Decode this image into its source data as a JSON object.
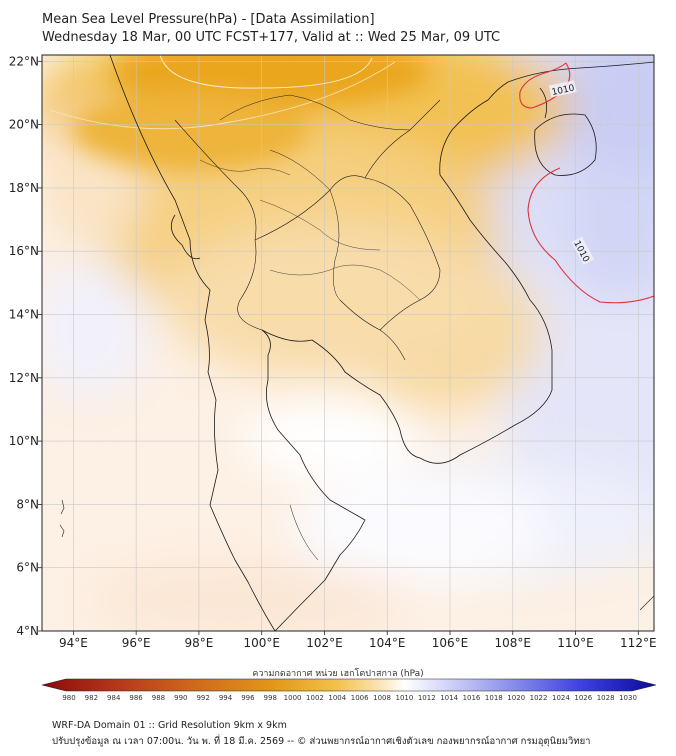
{
  "title": {
    "line1": "Mean Sea Level Pressure(hPa) - [Data Assimilation]",
    "line2": "Wednesday 18 Mar, 00 UTC FCST+177, Valid at :: Wed 25 Mar, 09 UTC"
  },
  "map": {
    "lon_range": [
      93,
      112.5
    ],
    "lat_range": [
      4,
      22.2
    ],
    "lon_ticks": [
      {
        "value": 94,
        "label": "94°E"
      },
      {
        "value": 96,
        "label": "96°E"
      },
      {
        "value": 98,
        "label": "98°E"
      },
      {
        "value": 100,
        "label": "100°E"
      },
      {
        "value": 102,
        "label": "102°E"
      },
      {
        "value": 104,
        "label": "104°E"
      },
      {
        "value": 106,
        "label": "106°E"
      },
      {
        "value": 108,
        "label": "108°E"
      },
      {
        "value": 110,
        "label": "110°E"
      },
      {
        "value": 112,
        "label": "112°E"
      }
    ],
    "lat_ticks": [
      {
        "value": 22,
        "label": "22°N"
      },
      {
        "value": 20,
        "label": "20°N"
      },
      {
        "value": 18,
        "label": "18°N"
      },
      {
        "value": 16,
        "label": "16°N"
      },
      {
        "value": 14,
        "label": "14°N"
      },
      {
        "value": 12,
        "label": "12°N"
      },
      {
        "value": 10,
        "label": "10°N"
      },
      {
        "value": 8,
        "label": "8°N"
      },
      {
        "value": 6,
        "label": "6°N"
      },
      {
        "value": 4,
        "label": "4°N"
      }
    ],
    "contour_labels": [
      {
        "text": "1010",
        "lon": 109.6,
        "lat": 21.1,
        "rotate": -12
      },
      {
        "text": "1010",
        "lon": 110.2,
        "lat": 16.0,
        "rotate": 62
      }
    ],
    "colors": {
      "high": "#e8a817",
      "mid": "#f2c96a",
      "light": "#f9e2b8",
      "neutral": "#fdf1e6",
      "white": "#ffffff",
      "low": "#e7e8fb",
      "lower": "#c8cbf4",
      "lowest": "#a9aeee",
      "contour": "#e0303a",
      "coast": "#1a1a1a",
      "grid": "#c8c8c8"
    }
  },
  "colorbar": {
    "title": "ความกดอากาศ หน่วย เฮกโตปาสกาล (hPa)",
    "levels": [
      "980",
      "982",
      "984",
      "986",
      "988",
      "990",
      "992",
      "994",
      "996",
      "998",
      "1000",
      "1002",
      "1004",
      "1006",
      "1008",
      "1010",
      "1012",
      "1014",
      "1016",
      "1018",
      "1020",
      "1022",
      "1024",
      "1026",
      "1028",
      "1030"
    ]
  },
  "footer": {
    "line1": "WRF-DA Domain 01 :: Grid Resolution 9km x 9km",
    "line2": "ปรับปรุงข้อมูล ณ เวลา 07:00น. วัน พ. ที่ 18 มี.ค. 2569 -- © ส่วนพยากรณ์อากาศเชิงตัวเลข กองพยากรณ์อากาศ กรมอุตุนิยมวิทยา"
  }
}
